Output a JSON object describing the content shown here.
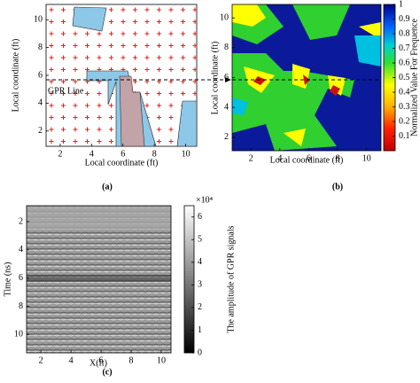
{
  "panels": [
    {
      "label": "(a)",
      "xlabel": "Local coordinate (ft)",
      "ylabel": "Local coordinate (ft)",
      "annotation": "GPR Line",
      "xlim": [
        1.1,
        10.7
      ],
      "ylim": [
        0.9,
        11.1
      ],
      "xticks": [
        2,
        4,
        6,
        8,
        10
      ],
      "yticks": [
        2,
        4,
        6,
        8,
        10
      ]
    },
    {
      "label": "(b)",
      "xlabel": "Local coordinate (ft)",
      "ylabel": "Local coordinate (ft)",
      "colorbar_label": "Normalized Value For Frequence",
      "xlim": [
        0.7,
        11
      ],
      "ylim": [
        1.1,
        10.9
      ],
      "xticks": [
        2,
        4,
        6,
        8,
        10
      ],
      "yticks": [
        2,
        4,
        6,
        8,
        10
      ],
      "clim": [
        0,
        1
      ],
      "cticks": [
        0.1,
        0.2,
        0.3,
        0.4,
        0.5,
        0.6,
        0.7,
        0.8,
        0.9,
        1
      ]
    },
    {
      "label": "(c)",
      "xlabel": "X(ft)",
      "ylabel": "Time (ns)",
      "colorbar_label": "The amplitude of GPR signals",
      "colorbar_exponent": "×10⁴",
      "xlim": [
        1.05,
        10.65
      ],
      "ylim": [
        0.87,
        11.3
      ],
      "xticks": [
        2,
        4,
        6,
        8,
        10
      ],
      "yticks": [
        2,
        4,
        6,
        8,
        10
      ],
      "clim": [
        0,
        6.5
      ],
      "cticks": [
        0,
        1,
        2,
        3,
        4,
        5,
        6
      ]
    }
  ]
}
